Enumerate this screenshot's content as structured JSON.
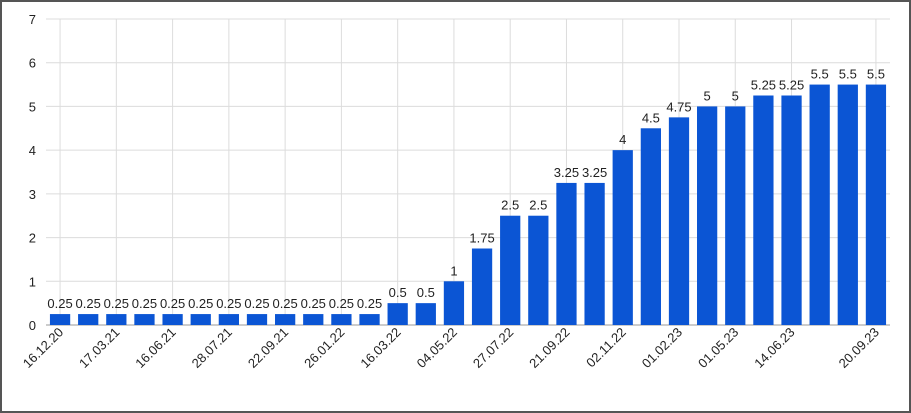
{
  "chart_data": {
    "type": "bar",
    "categories": [
      "16.12.20",
      null,
      "17.03.21",
      null,
      "16.06.21",
      null,
      "28.07.21",
      null,
      "22.09.21",
      null,
      "26.01.22",
      null,
      "16.03.22",
      null,
      "04.05.22",
      null,
      "27.07.22",
      null,
      "21.09.22",
      null,
      "02.11.22",
      null,
      "01.02.23",
      null,
      "01.05.23",
      null,
      "14.06.23",
      null,
      null,
      "20.09.23"
    ],
    "values": [
      0.25,
      0.25,
      0.25,
      0.25,
      0.25,
      0.25,
      0.25,
      0.25,
      0.25,
      0.25,
      0.25,
      0.25,
      0.5,
      0.5,
      1,
      1.75,
      2.5,
      2.5,
      3.25,
      3.25,
      4,
      4.5,
      4.75,
      5,
      5,
      5.25,
      5.25,
      5.5,
      5.5,
      5.5
    ],
    "color": "#0b55d4",
    "ylim": [
      0,
      7
    ],
    "yticks": [
      0,
      1,
      2,
      3,
      4,
      5,
      6,
      7
    ],
    "grid": true
  }
}
